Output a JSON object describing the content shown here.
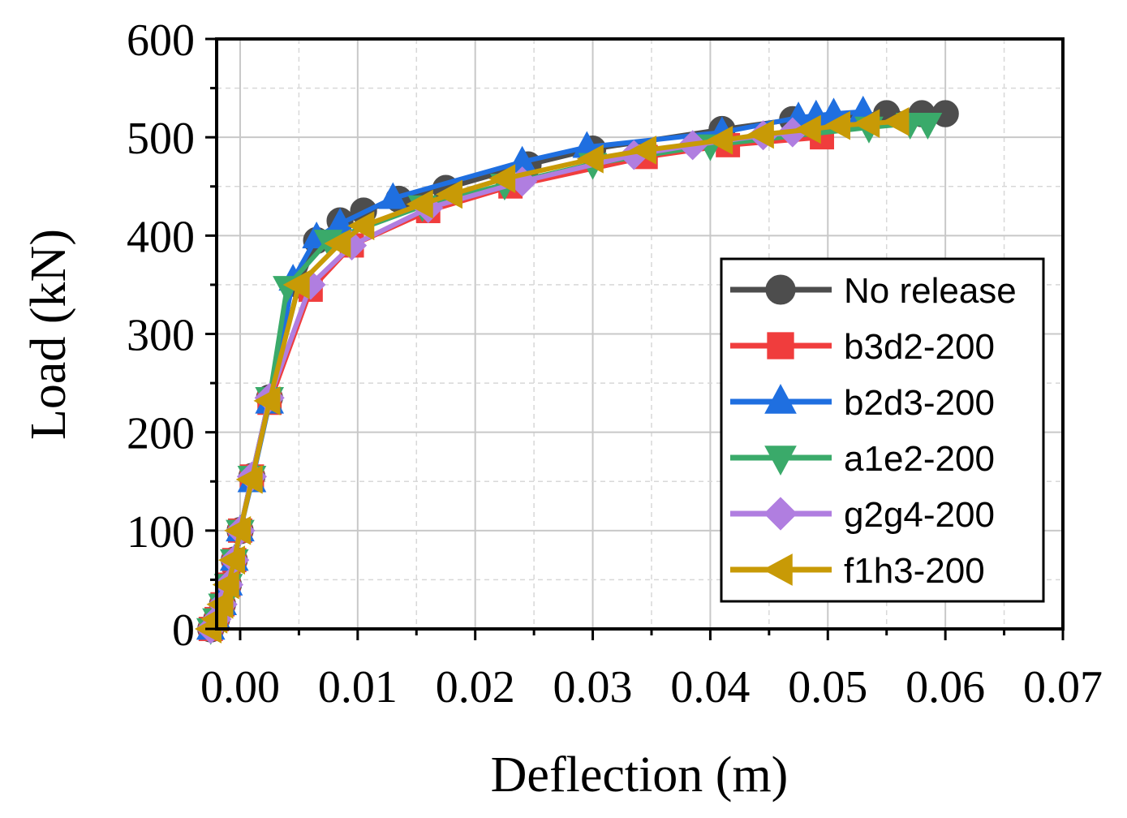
{
  "chart_data": {
    "type": "line",
    "title": "",
    "xlabel": "Deflection (m)",
    "ylabel": "Load (kN)",
    "xlim": [
      -0.002,
      0.07
    ],
    "ylim": [
      0,
      600
    ],
    "xticks": [
      "0.00",
      "0.01",
      "0.02",
      "0.03",
      "0.04",
      "0.05",
      "0.06",
      "0.07"
    ],
    "xtick_values": [
      0,
      0.01,
      0.02,
      0.03,
      0.04,
      0.05,
      0.06,
      0.07
    ],
    "yticks": [
      "0",
      "100",
      "200",
      "300",
      "400",
      "500",
      "600"
    ],
    "ytick_values": [
      0,
      100,
      200,
      300,
      400,
      500,
      600
    ],
    "grid": true,
    "legend_position": "right",
    "series": [
      {
        "name": "No release",
        "color": "#4d4d4d",
        "marker": "circle",
        "x": [
          -0.0025,
          -0.002,
          -0.0015,
          -0.001,
          -0.0005,
          0.0,
          0.001,
          0.0025,
          0.005,
          0.0065,
          0.0085,
          0.0105,
          0.0135,
          0.0175,
          0.0245,
          0.03,
          0.041,
          0.047,
          0.055,
          0.058,
          0.06
        ],
        "y": [
          0,
          10,
          25,
          45,
          70,
          100,
          155,
          235,
          350,
          395,
          415,
          425,
          437,
          448,
          472,
          488,
          508,
          518,
          524,
          524,
          524
        ]
      },
      {
        "name": "b3d2-200",
        "color": "#f03d3d",
        "marker": "square",
        "x": [
          -0.0025,
          -0.002,
          -0.0015,
          -0.001,
          -0.0005,
          0.0,
          0.001,
          0.0025,
          0.006,
          0.0095,
          0.016,
          0.023,
          0.0345,
          0.0415,
          0.0495
        ],
        "y": [
          0,
          10,
          25,
          45,
          70,
          100,
          155,
          230,
          345,
          390,
          425,
          450,
          480,
          492,
          500
        ]
      },
      {
        "name": "b2d3-200",
        "color": "#1f6fe0",
        "marker": "triangle-up",
        "x": [
          -0.0025,
          -0.002,
          -0.0015,
          -0.001,
          -0.0005,
          0.0,
          0.001,
          0.0025,
          0.0045,
          0.0065,
          0.0085,
          0.013,
          0.024,
          0.0295,
          0.041,
          0.0475,
          0.049,
          0.0505,
          0.053
        ],
        "y": [
          0,
          10,
          25,
          45,
          70,
          100,
          150,
          230,
          355,
          398,
          412,
          438,
          475,
          490,
          505,
          520,
          522,
          524,
          526
        ]
      },
      {
        "name": "a1e2-200",
        "color": "#3aaa6a",
        "marker": "triangle-down",
        "x": [
          -0.0025,
          -0.002,
          -0.0015,
          -0.001,
          -0.0005,
          0.0,
          0.001,
          0.0025,
          0.004,
          0.0075,
          0.0155,
          0.0225,
          0.03,
          0.04,
          0.0535,
          0.057,
          0.0585
        ],
        "y": [
          0,
          10,
          25,
          45,
          70,
          100,
          155,
          235,
          348,
          395,
          430,
          452,
          473,
          492,
          510,
          514,
          514
        ]
      },
      {
        "name": "g2g4-200",
        "color": "#b07ee0",
        "marker": "diamond",
        "x": [
          -0.0025,
          -0.002,
          -0.0015,
          -0.001,
          -0.0005,
          0.0,
          0.001,
          0.0025,
          0.006,
          0.0095,
          0.016,
          0.024,
          0.0335,
          0.0385,
          0.0445,
          0.047
        ],
        "y": [
          0,
          10,
          25,
          45,
          70,
          100,
          155,
          235,
          350,
          390,
          428,
          455,
          482,
          492,
          502,
          505
        ]
      },
      {
        "name": "f1h3-200",
        "color": "#c89a06",
        "marker": "triangle-left",
        "x": [
          -0.0025,
          -0.002,
          -0.0015,
          -0.001,
          -0.0005,
          0.0,
          0.001,
          0.0025,
          0.005,
          0.0085,
          0.0105,
          0.0155,
          0.018,
          0.0225,
          0.03,
          0.0345,
          0.041,
          0.0445,
          0.0485,
          0.051,
          0.0535,
          0.056
        ],
        "y": [
          0,
          10,
          25,
          45,
          70,
          100,
          152,
          232,
          350,
          392,
          410,
          432,
          442,
          458,
          478,
          487,
          497,
          503,
          508,
          512,
          514,
          516
        ]
      }
    ]
  }
}
